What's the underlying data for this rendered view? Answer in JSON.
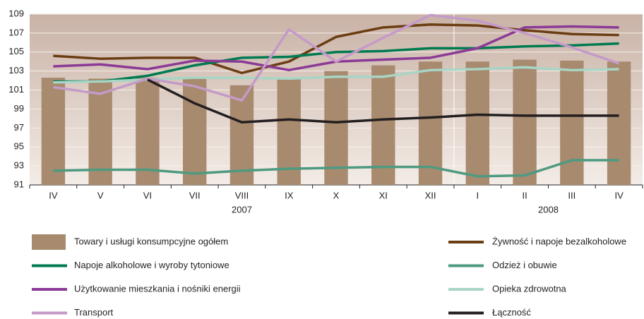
{
  "chart_data": {
    "type": "combo",
    "categories": [
      "IV",
      "V",
      "VI",
      "VII",
      "VIII",
      "IX",
      "X",
      "XI",
      "XII",
      "I",
      "II",
      "III",
      "IV"
    ],
    "years": [
      "2007",
      "2008"
    ],
    "ylim": [
      91,
      109
    ],
    "yticks": [
      91,
      93,
      95,
      97,
      99,
      101,
      103,
      105,
      107,
      109
    ],
    "grid": true,
    "series": [
      {
        "name": "Towary i usługi konsumpcyjne ogółem",
        "type": "bar",
        "color": "#a88a6e",
        "values": [
          102.3,
          102.2,
          102.3,
          102.3,
          101.5,
          102.2,
          103.0,
          103.6,
          104.0,
          104.0,
          104.2,
          104.1,
          104.0
        ]
      },
      {
        "name": "Żywność i napoje bezalkoholowe",
        "type": "line",
        "color": "#6b3d12",
        "values": [
          104.6,
          104.3,
          104.4,
          104.4,
          102.8,
          104.0,
          106.6,
          107.6,
          107.9,
          107.8,
          107.3,
          106.9,
          106.8
        ]
      },
      {
        "name": "Napoje alkoholowe i wyroby tytoniowe",
        "type": "line",
        "color": "#007a50",
        "values": [
          101.9,
          101.9,
          102.5,
          103.6,
          104.4,
          104.5,
          105.0,
          105.1,
          105.4,
          105.4,
          105.6,
          105.7,
          105.9
        ]
      },
      {
        "name": "Odzież i obuwie",
        "type": "line",
        "color": "#4e9a80",
        "values": [
          92.5,
          92.6,
          92.6,
          92.2,
          92.5,
          92.7,
          92.8,
          92.9,
          92.9,
          91.9,
          92.0,
          93.6,
          93.6
        ]
      },
      {
        "name": "Użytkowanie mieszkania i nośniki energii",
        "type": "line",
        "color": "#8b3a96",
        "values": [
          103.5,
          103.7,
          103.2,
          104.1,
          104.0,
          103.1,
          104.0,
          104.2,
          104.4,
          105.4,
          107.6,
          107.7,
          107.6
        ]
      },
      {
        "name": "Opieka zdrowotna",
        "type": "line",
        "color": "#a8d5c5",
        "values": [
          101.8,
          101.9,
          102.1,
          102.3,
          102.3,
          102.2,
          102.4,
          102.4,
          103.1,
          103.2,
          103.4,
          103.1,
          103.2
        ]
      },
      {
        "name": "Transport",
        "type": "line",
        "color": "#c49ac8",
        "values": [
          101.3,
          100.6,
          102.2,
          101.4,
          99.9,
          107.4,
          104.0,
          106.5,
          108.9,
          108.3,
          107.0,
          105.5,
          103.8
        ]
      },
      {
        "name": "Łączność",
        "type": "line",
        "color": "#231f20",
        "values": [
          null,
          null,
          102.1,
          99.6,
          97.6,
          97.9,
          97.6,
          97.9,
          98.1,
          98.4,
          98.3,
          98.3,
          98.3
        ]
      }
    ]
  }
}
